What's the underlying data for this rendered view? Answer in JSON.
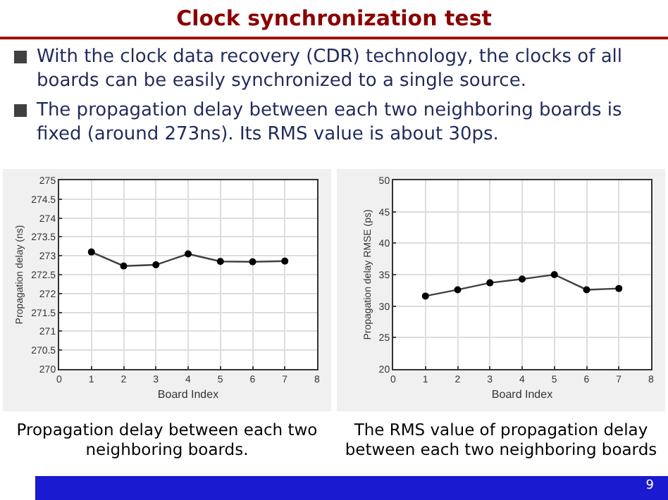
{
  "chart_data": [
    {
      "type": "other",
      "title": "Clock synchronization test",
      "annotations": [
        "With the clock data recovery (CDR) technology, the clocks of all boards can be easily synchronized to a single source.",
        "The propagation delay between each two neighboring boards is fixed (around 273ns). Its RMS value is about 30ps.",
        "9"
      ]
    },
    {
      "type": "line",
      "xlabel": "Board Index",
      "ylabel": "Propagation delay (ns)",
      "x": [
        1,
        2,
        3,
        4,
        5,
        6,
        7
      ],
      "series": [
        {
          "color": "#404040",
          "values": [
            273.1,
            272.73,
            272.76,
            273.05,
            272.85,
            272.84,
            272.86
          ]
        }
      ],
      "xlim": [
        0,
        8
      ],
      "xticks": [
        0,
        1,
        2,
        3,
        4,
        5,
        6,
        7,
        8
      ],
      "ylim": [
        270,
        275
      ],
      "yticks": [
        270,
        270.5,
        271,
        271.5,
        272,
        272.5,
        273,
        273.5,
        274,
        274.5,
        275
      ],
      "grid": true,
      "marker": "circle",
      "line_style": "solid",
      "annotations": [
        "Propagation delay between each two neighboring boards."
      ]
    },
    {
      "type": "line",
      "xlabel": "Board Index",
      "ylabel": "Propagation delay RMSE (ps)",
      "x": [
        1,
        2,
        3,
        4,
        5,
        6,
        7
      ],
      "series": [
        {
          "color": "#404040",
          "values": [
            31.6,
            32.6,
            33.7,
            34.3,
            35.0,
            32.6,
            32.8
          ]
        }
      ],
      "xlim": [
        0,
        8
      ],
      "xticks": [
        0,
        1,
        2,
        3,
        4,
        5,
        6,
        7,
        8
      ],
      "ylim": [
        20,
        50
      ],
      "yticks": [
        20,
        25,
        30,
        35,
        40,
        45,
        50
      ],
      "grid": true,
      "marker": "circle",
      "line_style": "solid",
      "annotations": [
        "The RMS value of propagation delay between each two neighboring boards"
      ]
    }
  ]
}
